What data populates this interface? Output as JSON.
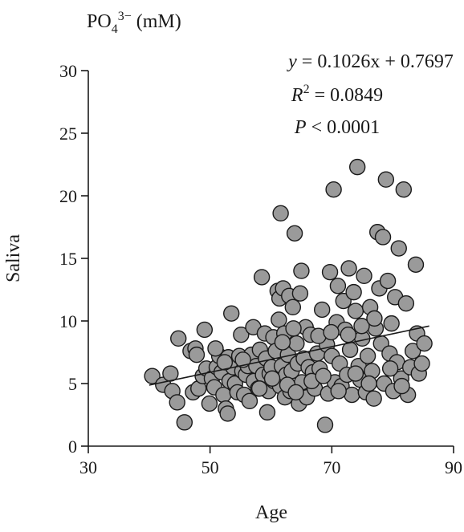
{
  "chart_data": {
    "type": "scatter",
    "title_main": "PO",
    "title_sub": "4",
    "title_sup": "3−",
    "title_unit": " (mM)",
    "xlabel": "Age",
    "ylabel": "Saliva",
    "xlim": [
      30,
      90
    ],
    "ylim": [
      0,
      30
    ],
    "xticks": [
      30,
      50,
      70,
      90
    ],
    "yticks": [
      0,
      5,
      10,
      15,
      20,
      25,
      30
    ],
    "grid": false,
    "annotations": {
      "equation_var": "y",
      "equation_rest": " = 0.1026x + 0.7697",
      "r2_var": "R",
      "r2_sup": "2",
      "r2_rest": " = 0.0849",
      "p_var": "P",
      "p_rest": " < 0.0001"
    },
    "fit": {
      "slope": 0.1026,
      "intercept": 0.7697,
      "x_range": [
        40,
        86
      ]
    },
    "colors": {
      "point_fill": "#9a9a9a",
      "point_stroke": "#1a1a1a",
      "line": "#1a1a1a"
    },
    "points": [
      [
        40.5,
        5.6
      ],
      [
        42.3,
        4.9
      ],
      [
        43.5,
        5.8
      ],
      [
        43.8,
        4.4
      ],
      [
        44.6,
        3.5
      ],
      [
        44.8,
        8.6
      ],
      [
        45.8,
        1.9
      ],
      [
        46.8,
        7.6
      ],
      [
        47.2,
        4.3
      ],
      [
        47.6,
        7.8
      ],
      [
        47.8,
        7.3
      ],
      [
        48.1,
        4.6
      ],
      [
        48.8,
        5.6
      ],
      [
        49.1,
        9.3
      ],
      [
        49.4,
        6.2
      ],
      [
        49.9,
        3.4
      ],
      [
        50.3,
        5.4
      ],
      [
        50.7,
        4.7
      ],
      [
        51.1,
        6.3
      ],
      [
        51.5,
        7.2
      ],
      [
        51.9,
        5.9
      ],
      [
        52.2,
        4.1
      ],
      [
        52.6,
        3.0
      ],
      [
        52.9,
        2.6
      ],
      [
        53.0,
        7.1
      ],
      [
        53.2,
        5.2
      ],
      [
        53.5,
        10.6
      ],
      [
        53.8,
        6.3
      ],
      [
        54.1,
        5.0
      ],
      [
        54.5,
        4.3
      ],
      [
        54.8,
        7.2
      ],
      [
        55.1,
        8.9
      ],
      [
        55.3,
        6.0
      ],
      [
        55.6,
        4.1
      ],
      [
        55.9,
        5.7
      ],
      [
        56.2,
        6.4
      ],
      [
        56.5,
        3.6
      ],
      [
        56.8,
        7.3
      ],
      [
        57.1,
        9.5
      ],
      [
        57.2,
        5.2
      ],
      [
        57.6,
        6.4
      ],
      [
        57.9,
        4.6
      ],
      [
        58.2,
        7.7
      ],
      [
        58.5,
        13.5
      ],
      [
        58.7,
        5.7
      ],
      [
        59.0,
        9.0
      ],
      [
        59.2,
        7.0
      ],
      [
        59.4,
        2.7
      ],
      [
        59.6,
        4.4
      ],
      [
        59.8,
        5.8
      ],
      [
        60.1,
        6.3
      ],
      [
        60.4,
        8.7
      ],
      [
        60.5,
        5.2
      ],
      [
        60.8,
        7.6
      ],
      [
        61.1,
        12.4
      ],
      [
        61.3,
        10.1
      ],
      [
        61.4,
        11.8
      ],
      [
        61.5,
        4.8
      ],
      [
        61.6,
        18.6
      ],
      [
        61.8,
        6.4
      ],
      [
        62.0,
        12.6
      ],
      [
        62.2,
        9.0
      ],
      [
        62.3,
        3.9
      ],
      [
        62.5,
        5.7
      ],
      [
        62.8,
        7.3
      ],
      [
        63.0,
        12.0
      ],
      [
        63.2,
        4.4
      ],
      [
        63.4,
        6.0
      ],
      [
        63.6,
        11.1
      ],
      [
        63.9,
        17.0
      ],
      [
        64.2,
        8.2
      ],
      [
        64.4,
        6.6
      ],
      [
        64.6,
        3.4
      ],
      [
        64.8,
        12.2
      ],
      [
        65.0,
        14.0
      ],
      [
        65.1,
        5.1
      ],
      [
        65.4,
        7.0
      ],
      [
        65.7,
        9.5
      ],
      [
        65.9,
        3.9
      ],
      [
        66.2,
        6.3
      ],
      [
        66.5,
        8.9
      ],
      [
        66.9,
        5.9
      ],
      [
        67.2,
        4.6
      ],
      [
        67.6,
        7.4
      ],
      [
        68.0,
        6.2
      ],
      [
        68.4,
        10.9
      ],
      [
        68.9,
        1.7
      ],
      [
        69.2,
        8.1
      ],
      [
        69.4,
        4.2
      ],
      [
        69.7,
        13.9
      ],
      [
        70.0,
        7.2
      ],
      [
        70.3,
        20.5
      ],
      [
        70.5,
        5.1
      ],
      [
        70.8,
        9.9
      ],
      [
        71.0,
        12.8
      ],
      [
        71.3,
        6.6
      ],
      [
        71.6,
        4.8
      ],
      [
        71.9,
        11.6
      ],
      [
        72.2,
        9.3
      ],
      [
        72.5,
        5.7
      ],
      [
        72.8,
        14.2
      ],
      [
        73.0,
        7.7
      ],
      [
        73.3,
        4.1
      ],
      [
        73.6,
        12.3
      ],
      [
        73.9,
        10.8
      ],
      [
        74.2,
        22.3
      ],
      [
        74.4,
        6.4
      ],
      [
        74.7,
        5.3
      ],
      [
        75.0,
        8.6
      ],
      [
        75.3,
        13.6
      ],
      [
        75.6,
        4.3
      ],
      [
        75.9,
        7.2
      ],
      [
        76.3,
        11.1
      ],
      [
        76.6,
        6.0
      ],
      [
        76.9,
        3.8
      ],
      [
        77.2,
        9.4
      ],
      [
        77.5,
        17.1
      ],
      [
        77.8,
        12.6
      ],
      [
        78.1,
        8.2
      ],
      [
        78.4,
        16.7
      ],
      [
        78.6,
        5.0
      ],
      [
        78.9,
        21.3
      ],
      [
        79.2,
        13.2
      ],
      [
        79.5,
        7.4
      ],
      [
        79.8,
        9.8
      ],
      [
        80.1,
        4.4
      ],
      [
        80.4,
        11.9
      ],
      [
        80.7,
        6.7
      ],
      [
        81.0,
        15.8
      ],
      [
        81.4,
        5.4
      ],
      [
        81.8,
        20.5
      ],
      [
        82.2,
        11.4
      ],
      [
        82.5,
        4.1
      ],
      [
        82.9,
        6.3
      ],
      [
        83.3,
        7.6
      ],
      [
        83.8,
        14.5
      ],
      [
        84.0,
        9.0
      ],
      [
        84.3,
        5.8
      ],
      [
        84.8,
        6.6
      ],
      [
        85.2,
        8.2
      ],
      [
        60.2,
        5.4
      ],
      [
        62.7,
        4.9
      ],
      [
        64.1,
        4.3
      ],
      [
        66.7,
        5.2
      ],
      [
        68.6,
        5.6
      ],
      [
        71.1,
        4.4
      ],
      [
        73.9,
        5.8
      ],
      [
        76.1,
        5.0
      ],
      [
        79.6,
        6.2
      ],
      [
        81.5,
        4.8
      ],
      [
        58.1,
        4.6
      ],
      [
        55.4,
        6.9
      ],
      [
        52.4,
        6.7
      ],
      [
        50.9,
        7.8
      ],
      [
        61.9,
        8.3
      ],
      [
        63.7,
        9.4
      ],
      [
        67.8,
        8.8
      ],
      [
        69.9,
        9.1
      ],
      [
        72.7,
        8.9
      ],
      [
        74.9,
        9.6
      ],
      [
        77.0,
        10.2
      ]
    ]
  }
}
